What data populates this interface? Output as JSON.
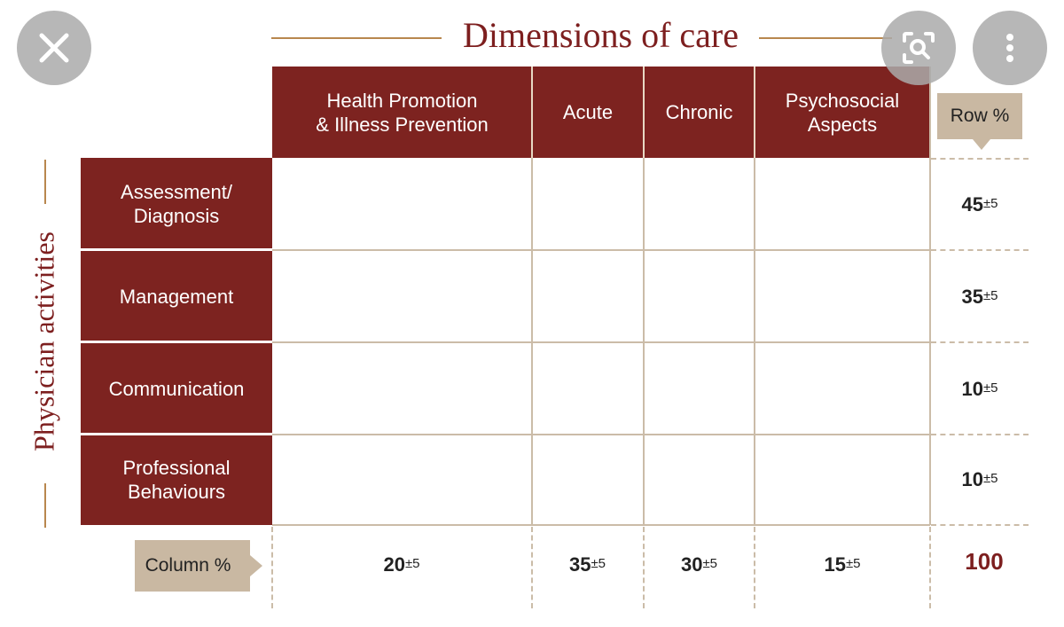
{
  "title": "Dimensions of care",
  "side_label": "Physician activities",
  "columns": [
    {
      "label_line1": "Health Promotion",
      "label_line2": "& Illness Prevention",
      "pct": "20",
      "tol": "±5"
    },
    {
      "label_line1": "Acute",
      "label_line2": "",
      "pct": "35",
      "tol": "±5"
    },
    {
      "label_line1": "Chronic",
      "label_line2": "",
      "pct": "30",
      "tol": "±5"
    },
    {
      "label_line1": "Psychosocial",
      "label_line2": "Aspects",
      "pct": "15",
      "tol": "±5"
    }
  ],
  "rows": [
    {
      "label_line1": "Assessment/",
      "label_line2": "Diagnosis",
      "pct": "45",
      "tol": "±5"
    },
    {
      "label_line1": "Management",
      "label_line2": "",
      "pct": "35",
      "tol": "±5"
    },
    {
      "label_line1": "Communication",
      "label_line2": "",
      "pct": "10",
      "tol": "±5"
    },
    {
      "label_line1": "Professional",
      "label_line2": "Behaviours",
      "pct": "10",
      "tol": "±5"
    }
  ],
  "row_pct_label": "Row %",
  "column_pct_label": "Column %",
  "total": "100",
  "overlay": {
    "close_icon": "close-icon",
    "lens_icon": "lens-search-icon",
    "more_icon": "more-vertical-icon"
  },
  "colors": {
    "header_fill": "#7d2320",
    "title_color": "#7d1f1f",
    "accent_line": "#b8874e",
    "tag_fill": "#c9b8a2",
    "grid": "#cbbca8"
  }
}
